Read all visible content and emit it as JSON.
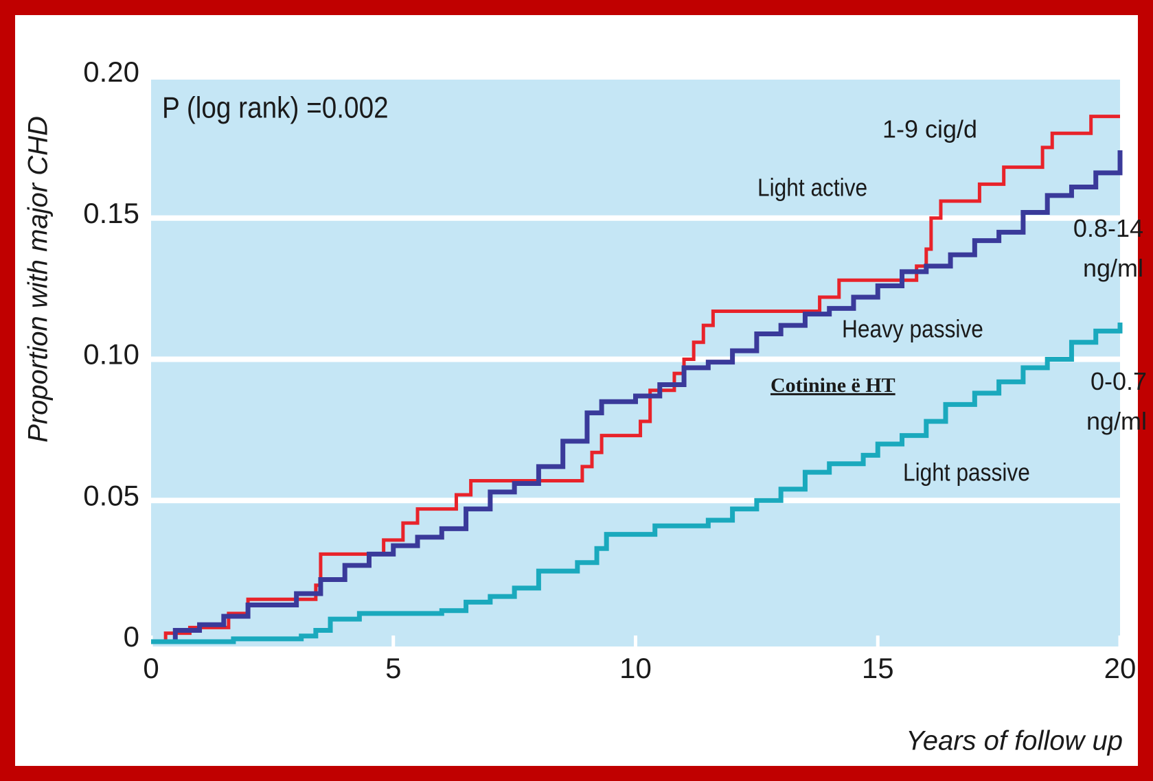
{
  "chart_data": {
    "type": "line",
    "step": "post",
    "xlabel": "Years of follow up",
    "ylabel": "Proportion with major CHD",
    "xlim": [
      0,
      20
    ],
    "ylim": [
      0,
      0.2
    ],
    "xticks": [
      0,
      5,
      10,
      15,
      20
    ],
    "yticks": [
      0,
      0.05,
      {
        "value": 0.1,
        "label": "0.10"
      },
      0.15,
      {
        "value": 0.2,
        "label": "0.20"
      }
    ],
    "grid": true,
    "annotations": [
      "P (log rank) =0.002",
      "1-9 cig/d",
      "0.8-14 ng/ml",
      "Cotinine ë HT",
      "0-0.7 ng/ml"
    ],
    "series": [
      {
        "name": "Light active",
        "color": "#e8232a",
        "x": [
          0,
          0.3,
          0.8,
          1.6,
          2.0,
          3.4,
          3.5,
          4.8,
          5.2,
          5.5,
          6.3,
          6.6,
          8.9,
          9.1,
          9.3,
          10.1,
          10.3,
          10.8,
          11.0,
          11.2,
          11.4,
          11.6,
          13.8,
          14.2,
          15.8,
          16.0,
          16.1,
          16.3,
          17.1,
          17.6,
          18.4,
          18.6,
          19.4,
          20
        ],
        "values": [
          0,
          0.003,
          0.005,
          0.01,
          0.015,
          0.02,
          0.031,
          0.036,
          0.042,
          0.047,
          0.052,
          0.057,
          0.062,
          0.067,
          0.073,
          0.078,
          0.089,
          0.095,
          0.1,
          0.106,
          0.112,
          0.117,
          0.122,
          0.128,
          0.133,
          0.139,
          0.15,
          0.156,
          0.162,
          0.168,
          0.175,
          0.18,
          0.186,
          0.186
        ]
      },
      {
        "name": "Heavy passive",
        "color": "#3a3a9a",
        "x": [
          0,
          0.5,
          1,
          1.5,
          2,
          3,
          3.5,
          4,
          4.5,
          5,
          5.5,
          6,
          6.5,
          7,
          7.5,
          8,
          8.5,
          9,
          9.3,
          10,
          10.5,
          11,
          11.5,
          12,
          12.5,
          13,
          13.5,
          14,
          14.5,
          15,
          15.5,
          16,
          16.5,
          17,
          17.5,
          18,
          18.5,
          19,
          19.5,
          20
        ],
        "values": [
          0,
          0.004,
          0.006,
          0.009,
          0.013,
          0.017,
          0.022,
          0.027,
          0.031,
          0.034,
          0.037,
          0.04,
          0.047,
          0.053,
          0.056,
          0.062,
          0.071,
          0.081,
          0.085,
          0.087,
          0.091,
          0.097,
          0.099,
          0.103,
          0.109,
          0.112,
          0.116,
          0.118,
          0.122,
          0.126,
          0.131,
          0.133,
          0.137,
          0.142,
          0.145,
          0.152,
          0.158,
          0.161,
          0.166,
          0.174
        ]
      },
      {
        "name": "Light passive",
        "color": "#1aa9bd",
        "x": [
          0,
          1.7,
          3.1,
          3.4,
          3.7,
          4.3,
          6,
          6.5,
          7,
          7.5,
          8,
          8.8,
          9.2,
          9.4,
          10.4,
          11.5,
          12,
          12.5,
          13,
          13.5,
          14,
          14.7,
          15,
          15.5,
          16,
          16.4,
          17,
          17.5,
          18,
          18.5,
          19,
          19.5,
          20
        ],
        "values": [
          0,
          0.001,
          0.002,
          0.004,
          0.008,
          0.01,
          0.011,
          0.014,
          0.016,
          0.019,
          0.025,
          0.028,
          0.033,
          0.038,
          0.041,
          0.043,
          0.047,
          0.05,
          0.054,
          0.06,
          0.063,
          0.066,
          0.07,
          0.073,
          0.078,
          0.084,
          0.088,
          0.092,
          0.097,
          0.1,
          0.106,
          0.11,
          0.113
        ]
      }
    ]
  }
}
